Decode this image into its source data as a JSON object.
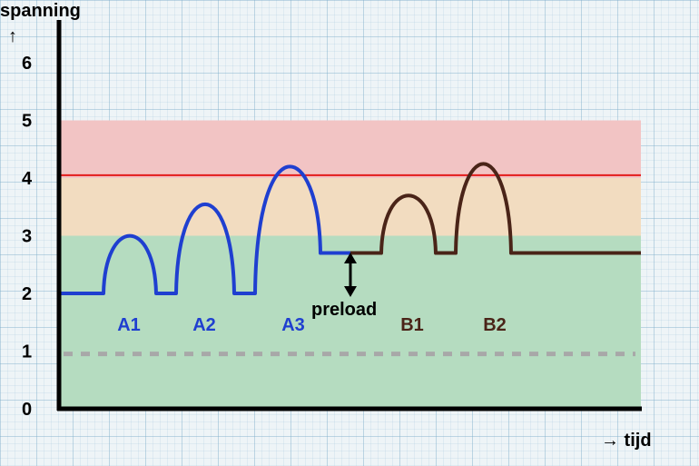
{
  "y_axis": {
    "label": "spanning",
    "arrow": "↑",
    "ticks": [
      "0",
      "1",
      "2",
      "3",
      "4",
      "5",
      "6"
    ]
  },
  "x_axis": {
    "label": "→ tijd"
  },
  "zones": [
    {
      "name": "green-zone",
      "from": 0,
      "to": 3,
      "color": "#b5dcc0"
    },
    {
      "name": "orange-zone",
      "from": 3,
      "to": 4,
      "color": "#f2dcc0"
    },
    {
      "name": "red-zone",
      "from": 4,
      "to": 5,
      "color": "#f2c4c4"
    }
  ],
  "threshold_line": {
    "value": 4.05,
    "color": "#e31b1b"
  },
  "dashed_line": {
    "value": 0.95,
    "color": "#a8a8a8"
  },
  "annotation": {
    "label": "preload",
    "from": 2.0,
    "to": 2.7
  },
  "bumps": [
    {
      "label": "A1",
      "color": "#1f3fd0",
      "peak": 3.0
    },
    {
      "label": "A2",
      "color": "#1f3fd0",
      "peak": 3.55
    },
    {
      "label": "A3",
      "color": "#1f3fd0",
      "peak": 4.2
    },
    {
      "label": "B1",
      "color": "#4a2418",
      "peak": 3.7
    },
    {
      "label": "B2",
      "color": "#4a2418",
      "peak": 4.25
    }
  ],
  "baselines": {
    "series_a": 2.0,
    "series_b": 2.7
  }
}
